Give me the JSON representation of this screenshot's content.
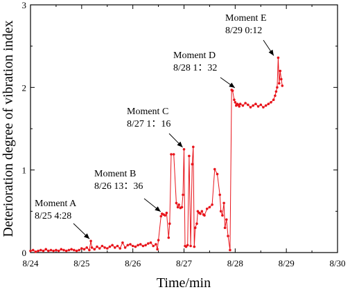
{
  "chart_data": {
    "type": "line",
    "xlabel": "Time/min",
    "ylabel": "Deterioration degree of vibration index",
    "xlim": [
      0,
      6
    ],
    "ylim": [
      0,
      3
    ],
    "xtick_values": [
      0,
      1,
      2,
      3,
      4,
      5,
      6
    ],
    "xtick_labels": [
      "8/24",
      "8/25",
      "8/26",
      "8/27",
      "8/28",
      "8/29",
      "8/30"
    ],
    "ytick_values": [
      0,
      1,
      2,
      3
    ],
    "ytick_labels": [
      "0",
      "1",
      "2",
      "3"
    ],
    "grid": false,
    "colors": {
      "series": "#e8141b",
      "axis": "#000000"
    },
    "series": [
      {
        "x": [
          0.0,
          0.05,
          0.1,
          0.15,
          0.2,
          0.25,
          0.3,
          0.35,
          0.4,
          0.45,
          0.5,
          0.55,
          0.6,
          0.65,
          0.7,
          0.75,
          0.8,
          0.85,
          0.9,
          0.95,
          1.0,
          1.05,
          1.1,
          1.15,
          1.18,
          1.2,
          1.25,
          1.3,
          1.35,
          1.4,
          1.45,
          1.5,
          1.55,
          1.6,
          1.65,
          1.7,
          1.75,
          1.8,
          1.85,
          1.9,
          1.95,
          2.0,
          2.05,
          2.1,
          2.15,
          2.2,
          2.25,
          2.3,
          2.35,
          2.4,
          2.45,
          2.48,
          2.5,
          2.55,
          2.57,
          2.6,
          2.63,
          2.66,
          2.7,
          2.72,
          2.75,
          2.8,
          2.85,
          2.88,
          2.9,
          2.93,
          2.96,
          2.98,
          3.0,
          3.02,
          3.04,
          3.07,
          3.1,
          3.13,
          3.16,
          3.18,
          3.2,
          3.22,
          3.25,
          3.27,
          3.3,
          3.32,
          3.35,
          3.38,
          3.4,
          3.45,
          3.5,
          3.55,
          3.6,
          3.65,
          3.7,
          3.72,
          3.75,
          3.78,
          3.8,
          3.83,
          3.86,
          3.9,
          3.93,
          3.95,
          3.98,
          4.0,
          4.02,
          4.04,
          4.06,
          4.08,
          4.1,
          4.15,
          4.2,
          4.25,
          4.3,
          4.35,
          4.4,
          4.45,
          4.5,
          4.55,
          4.6,
          4.65,
          4.7,
          4.75,
          4.78,
          4.8,
          4.82,
          4.84,
          4.86,
          4.88,
          4.9,
          4.92
        ],
        "y": [
          0.02,
          0.03,
          0.01,
          0.02,
          0.03,
          0.02,
          0.04,
          0.02,
          0.03,
          0.02,
          0.03,
          0.02,
          0.04,
          0.03,
          0.02,
          0.03,
          0.04,
          0.03,
          0.02,
          0.03,
          0.05,
          0.04,
          0.06,
          0.03,
          0.14,
          0.06,
          0.04,
          0.07,
          0.05,
          0.08,
          0.06,
          0.05,
          0.07,
          0.09,
          0.06,
          0.08,
          0.05,
          0.12,
          0.06,
          0.09,
          0.1,
          0.08,
          0.07,
          0.09,
          0.1,
          0.08,
          0.09,
          0.11,
          0.12,
          0.08,
          0.1,
          0.04,
          0.15,
          0.44,
          0.47,
          0.46,
          0.45,
          0.48,
          0.18,
          0.35,
          1.19,
          1.19,
          0.6,
          0.55,
          0.58,
          0.54,
          0.55,
          0.7,
          1.25,
          0.08,
          0.07,
          0.09,
          1.17,
          0.08,
          1.07,
          1.28,
          0.07,
          0.3,
          0.35,
          0.5,
          0.48,
          0.47,
          0.5,
          0.46,
          0.45,
          0.53,
          0.55,
          0.58,
          1.01,
          0.95,
          0.7,
          0.5,
          0.45,
          0.6,
          0.3,
          0.4,
          0.2,
          0.03,
          1.97,
          1.96,
          1.85,
          1.82,
          1.78,
          1.8,
          1.79,
          1.77,
          1.8,
          1.78,
          1.81,
          1.79,
          1.76,
          1.78,
          1.8,
          1.77,
          1.79,
          1.76,
          1.78,
          1.8,
          1.82,
          1.85,
          1.9,
          1.95,
          2.0,
          2.36,
          2.05,
          2.2,
          2.1,
          2.02
        ]
      }
    ],
    "annotations": [
      {
        "label": "Moment A",
        "sublabel": "8/25 4:28",
        "x": 1.18,
        "y": 0.14
      },
      {
        "label": "Moment B",
        "sublabel": "8/26 13：36",
        "x": 2.57,
        "y": 0.47
      },
      {
        "label": "Moment C",
        "sublabel": "8/27 1：16",
        "x": 3.0,
        "y": 1.25
      },
      {
        "label": "Moment D",
        "sublabel": "8/28 1：32",
        "x": 4.02,
        "y": 1.97
      },
      {
        "label": "Moment E",
        "sublabel": "8/29 0:12",
        "x": 4.78,
        "y": 2.36
      }
    ]
  }
}
